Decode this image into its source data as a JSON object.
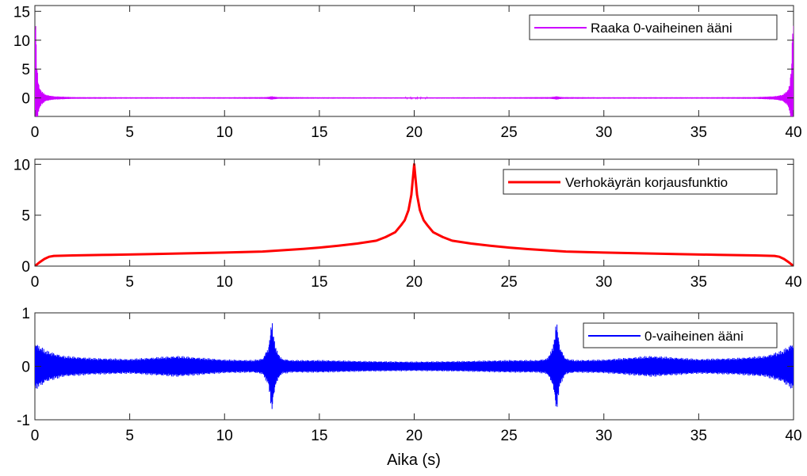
{
  "chart_data": [
    {
      "type": "line",
      "title": "",
      "xlabel": "",
      "ylabel": "",
      "xlim": [
        0,
        40
      ],
      "ylim": [
        -3.2,
        16
      ],
      "xticks": [
        0,
        5,
        10,
        15,
        20,
        25,
        30,
        35,
        40
      ],
      "xtick_labels": [
        "0",
        "5",
        "10",
        "15",
        "20",
        "25",
        "30",
        "35",
        "40"
      ],
      "yticks": [
        0,
        5,
        10,
        15
      ],
      "ytick_labels": [
        "0",
        "5",
        "10",
        "15"
      ],
      "grid": false,
      "legend_position": "top-right",
      "series": [
        {
          "name": "Raaka 0-vaiheinen ääni",
          "color": "#cc00ff",
          "style": "oscillating signal, amplitude envelope",
          "envelope": {
            "x": [
              0,
              0.05,
              0.1,
              0.2,
              0.35,
              0.6,
              1.0,
              2,
              5,
              10,
              12.2,
              12.5,
              12.8,
              15,
              20,
              25,
              27.2,
              27.5,
              27.8,
              30,
              35,
              38,
              39,
              39.4,
              39.65,
              39.8,
              39.9,
              39.95,
              40
            ],
            "amplitude": [
              15.5,
              14,
              6,
              2.5,
              1.2,
              0.55,
              0.3,
              0.15,
              0.12,
              0.12,
              0.15,
              0.3,
              0.15,
              0.12,
              0.1,
              0.12,
              0.15,
              0.3,
              0.15,
              0.12,
              0.12,
              0.15,
              0.3,
              0.55,
              1.2,
              2.5,
              6,
              14,
              15.5
            ]
          }
        }
      ]
    },
    {
      "type": "line",
      "title": "",
      "xlabel": "",
      "ylabel": "",
      "xlim": [
        0,
        40
      ],
      "ylim": [
        0,
        10.5
      ],
      "xticks": [
        0,
        5,
        10,
        15,
        20,
        25,
        30,
        35,
        40
      ],
      "xtick_labels": [
        "0",
        "5",
        "10",
        "15",
        "20",
        "25",
        "30",
        "35",
        "40"
      ],
      "yticks": [
        0,
        5,
        10
      ],
      "ytick_labels": [
        "0",
        "5",
        "10"
      ],
      "grid": false,
      "legend_position": "top-right",
      "series": [
        {
          "name": "Verhokäyrän korjausfunktio",
          "color": "#ff0000",
          "x": [
            0,
            0.25,
            0.5,
            0.75,
            1.0,
            2,
            4,
            6,
            8,
            10,
            12,
            14,
            15,
            16,
            17,
            18,
            18.5,
            19,
            19.3,
            19.5,
            19.7,
            19.85,
            20,
            20.15,
            20.3,
            20.5,
            20.7,
            21,
            21.5,
            22,
            23,
            24,
            25,
            26,
            28,
            30,
            32,
            34,
            36,
            38,
            39,
            39.25,
            39.5,
            39.75,
            40
          ],
          "values": [
            0,
            0.38,
            0.7,
            0.92,
            1.0,
            1.05,
            1.11,
            1.18,
            1.25,
            1.33,
            1.43,
            1.67,
            1.82,
            2.0,
            2.22,
            2.5,
            2.86,
            3.33,
            4.0,
            4.5,
            5.5,
            7.0,
            10.0,
            7.0,
            5.5,
            4.5,
            4.0,
            3.33,
            2.86,
            2.5,
            2.22,
            2.0,
            1.82,
            1.67,
            1.43,
            1.33,
            1.25,
            1.18,
            1.11,
            1.05,
            1.0,
            0.92,
            0.7,
            0.38,
            0
          ]
        }
      ]
    },
    {
      "type": "line",
      "title": "",
      "xlabel": "Aika (s)",
      "ylabel": "",
      "xlim": [
        0,
        40
      ],
      "ylim": [
        -1,
        1
      ],
      "xticks": [
        0,
        5,
        10,
        15,
        20,
        25,
        30,
        35,
        40
      ],
      "xtick_labels": [
        "0",
        "5",
        "10",
        "15",
        "20",
        "25",
        "30",
        "35",
        "40"
      ],
      "yticks": [
        -1,
        0,
        1
      ],
      "ytick_labels": [
        "-1",
        "0",
        "1"
      ],
      "grid": false,
      "legend_position": "top-right",
      "series": [
        {
          "name": "0-vaiheinen ääni",
          "color": "#0000ff",
          "style": "oscillating signal, amplitude envelope",
          "envelope": {
            "x": [
              0,
              0.3,
              0.6,
              1.5,
              3,
              5,
              7.5,
              10,
              11.5,
              12.0,
              12.3,
              12.5,
              12.7,
              13.0,
              13.5,
              15,
              17.5,
              20,
              22.5,
              25,
              26.5,
              27.0,
              27.3,
              27.5,
              27.7,
              28.0,
              28.5,
              30,
              32.5,
              35,
              37,
              38.5,
              39.4,
              39.7,
              40
            ],
            "amplitude": [
              0.45,
              0.38,
              0.3,
              0.2,
              0.16,
              0.14,
              0.2,
              0.13,
              0.12,
              0.15,
              0.35,
              0.88,
              0.35,
              0.15,
              0.12,
              0.12,
              0.1,
              0.09,
              0.1,
              0.12,
              0.12,
              0.15,
              0.35,
              0.88,
              0.35,
              0.15,
              0.12,
              0.13,
              0.2,
              0.14,
              0.16,
              0.2,
              0.3,
              0.38,
              0.45
            ]
          }
        }
      ]
    }
  ]
}
